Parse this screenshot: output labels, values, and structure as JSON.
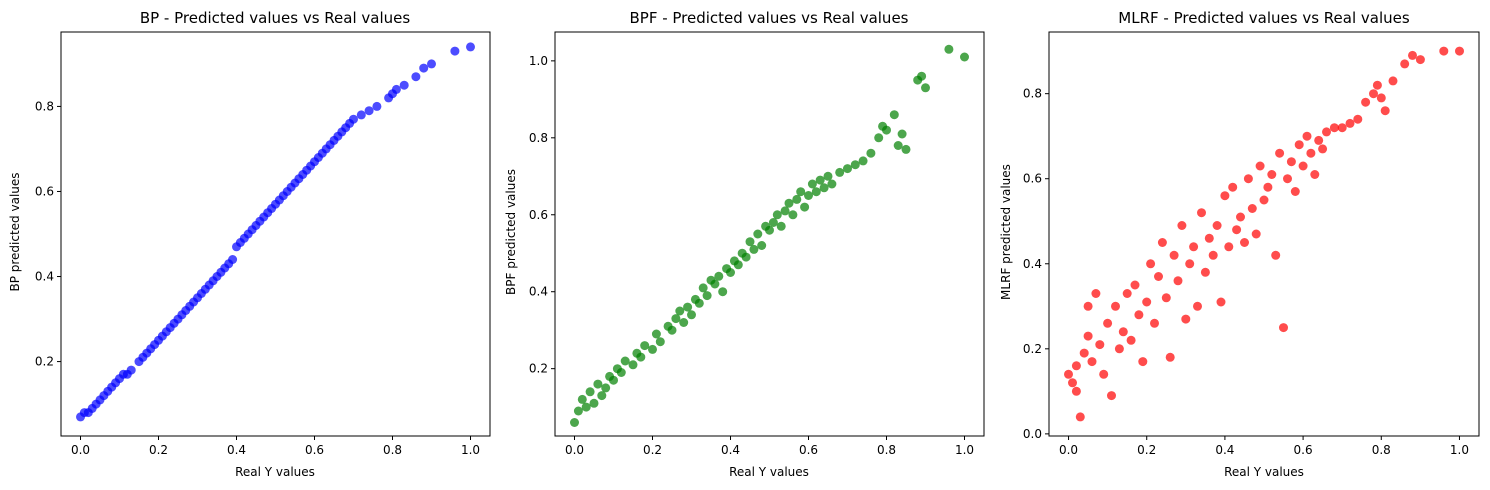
{
  "chart_data": [
    {
      "type": "scatter",
      "title": "BP - Predicted values vs Real values",
      "xlabel": "Real Y values",
      "ylabel": "BP predicted values",
      "color": "#0000ff",
      "xlim": [
        -0.05,
        1.05
      ],
      "ylim": [
        0.025,
        0.975
      ],
      "xticks": [
        0.0,
        0.2,
        0.4,
        0.6,
        0.8,
        1.0
      ],
      "yticks": [
        0.2,
        0.4,
        0.6,
        0.8
      ],
      "points": [
        [
          0.0,
          0.07
        ],
        [
          0.01,
          0.08
        ],
        [
          0.02,
          0.08
        ],
        [
          0.03,
          0.09
        ],
        [
          0.04,
          0.1
        ],
        [
          0.05,
          0.11
        ],
        [
          0.06,
          0.12
        ],
        [
          0.07,
          0.13
        ],
        [
          0.08,
          0.14
        ],
        [
          0.09,
          0.15
        ],
        [
          0.1,
          0.16
        ],
        [
          0.11,
          0.17
        ],
        [
          0.12,
          0.17
        ],
        [
          0.13,
          0.18
        ],
        [
          0.15,
          0.2
        ],
        [
          0.16,
          0.21
        ],
        [
          0.17,
          0.22
        ],
        [
          0.18,
          0.23
        ],
        [
          0.19,
          0.24
        ],
        [
          0.2,
          0.25
        ],
        [
          0.21,
          0.26
        ],
        [
          0.22,
          0.27
        ],
        [
          0.23,
          0.28
        ],
        [
          0.24,
          0.29
        ],
        [
          0.25,
          0.3
        ],
        [
          0.26,
          0.31
        ],
        [
          0.27,
          0.32
        ],
        [
          0.28,
          0.33
        ],
        [
          0.29,
          0.34
        ],
        [
          0.3,
          0.35
        ],
        [
          0.31,
          0.36
        ],
        [
          0.32,
          0.37
        ],
        [
          0.33,
          0.38
        ],
        [
          0.34,
          0.39
        ],
        [
          0.35,
          0.4
        ],
        [
          0.36,
          0.41
        ],
        [
          0.37,
          0.42
        ],
        [
          0.38,
          0.43
        ],
        [
          0.39,
          0.44
        ],
        [
          0.4,
          0.47
        ],
        [
          0.41,
          0.48
        ],
        [
          0.42,
          0.49
        ],
        [
          0.43,
          0.5
        ],
        [
          0.44,
          0.51
        ],
        [
          0.45,
          0.52
        ],
        [
          0.46,
          0.53
        ],
        [
          0.47,
          0.54
        ],
        [
          0.48,
          0.55
        ],
        [
          0.49,
          0.56
        ],
        [
          0.5,
          0.57
        ],
        [
          0.51,
          0.58
        ],
        [
          0.52,
          0.59
        ],
        [
          0.53,
          0.6
        ],
        [
          0.54,
          0.61
        ],
        [
          0.55,
          0.62
        ],
        [
          0.56,
          0.63
        ],
        [
          0.57,
          0.64
        ],
        [
          0.58,
          0.65
        ],
        [
          0.59,
          0.66
        ],
        [
          0.6,
          0.67
        ],
        [
          0.61,
          0.68
        ],
        [
          0.62,
          0.69
        ],
        [
          0.63,
          0.7
        ],
        [
          0.64,
          0.71
        ],
        [
          0.65,
          0.72
        ],
        [
          0.66,
          0.73
        ],
        [
          0.67,
          0.74
        ],
        [
          0.68,
          0.75
        ],
        [
          0.69,
          0.76
        ],
        [
          0.7,
          0.77
        ],
        [
          0.72,
          0.78
        ],
        [
          0.74,
          0.79
        ],
        [
          0.76,
          0.8
        ],
        [
          0.79,
          0.82
        ],
        [
          0.8,
          0.83
        ],
        [
          0.81,
          0.84
        ],
        [
          0.83,
          0.85
        ],
        [
          0.86,
          0.87
        ],
        [
          0.88,
          0.89
        ],
        [
          0.9,
          0.9
        ],
        [
          0.96,
          0.93
        ],
        [
          1.0,
          0.94
        ]
      ]
    },
    {
      "type": "scatter",
      "title": "BPF - Predicted values vs Real values",
      "xlabel": "Real Y values",
      "ylabel": "BPF predicted values",
      "color": "#008000",
      "xlim": [
        -0.05,
        1.05
      ],
      "ylim": [
        0.025,
        1.075
      ],
      "xticks": [
        0.0,
        0.2,
        0.4,
        0.6,
        0.8,
        1.0
      ],
      "yticks": [
        0.2,
        0.4,
        0.6,
        0.8,
        1.0
      ],
      "points": [
        [
          0.0,
          0.06
        ],
        [
          0.01,
          0.09
        ],
        [
          0.02,
          0.12
        ],
        [
          0.03,
          0.1
        ],
        [
          0.04,
          0.14
        ],
        [
          0.05,
          0.11
        ],
        [
          0.06,
          0.16
        ],
        [
          0.07,
          0.13
        ],
        [
          0.08,
          0.15
        ],
        [
          0.09,
          0.18
        ],
        [
          0.1,
          0.17
        ],
        [
          0.11,
          0.2
        ],
        [
          0.12,
          0.19
        ],
        [
          0.13,
          0.22
        ],
        [
          0.15,
          0.21
        ],
        [
          0.16,
          0.24
        ],
        [
          0.17,
          0.23
        ],
        [
          0.18,
          0.26
        ],
        [
          0.2,
          0.25
        ],
        [
          0.21,
          0.29
        ],
        [
          0.22,
          0.27
        ],
        [
          0.24,
          0.31
        ],
        [
          0.25,
          0.3
        ],
        [
          0.26,
          0.33
        ],
        [
          0.27,
          0.35
        ],
        [
          0.28,
          0.32
        ],
        [
          0.29,
          0.36
        ],
        [
          0.3,
          0.34
        ],
        [
          0.31,
          0.38
        ],
        [
          0.32,
          0.37
        ],
        [
          0.33,
          0.41
        ],
        [
          0.34,
          0.39
        ],
        [
          0.35,
          0.43
        ],
        [
          0.36,
          0.42
        ],
        [
          0.37,
          0.44
        ],
        [
          0.38,
          0.4
        ],
        [
          0.39,
          0.46
        ],
        [
          0.4,
          0.45
        ],
        [
          0.41,
          0.48
        ],
        [
          0.42,
          0.47
        ],
        [
          0.43,
          0.5
        ],
        [
          0.44,
          0.49
        ],
        [
          0.45,
          0.53
        ],
        [
          0.46,
          0.51
        ],
        [
          0.47,
          0.55
        ],
        [
          0.48,
          0.52
        ],
        [
          0.49,
          0.57
        ],
        [
          0.5,
          0.56
        ],
        [
          0.51,
          0.58
        ],
        [
          0.52,
          0.6
        ],
        [
          0.53,
          0.57
        ],
        [
          0.54,
          0.61
        ],
        [
          0.55,
          0.63
        ],
        [
          0.56,
          0.6
        ],
        [
          0.57,
          0.64
        ],
        [
          0.58,
          0.66
        ],
        [
          0.59,
          0.62
        ],
        [
          0.6,
          0.65
        ],
        [
          0.61,
          0.68
        ],
        [
          0.62,
          0.66
        ],
        [
          0.63,
          0.69
        ],
        [
          0.64,
          0.67
        ],
        [
          0.65,
          0.7
        ],
        [
          0.66,
          0.68
        ],
        [
          0.68,
          0.71
        ],
        [
          0.7,
          0.72
        ],
        [
          0.72,
          0.73
        ],
        [
          0.74,
          0.74
        ],
        [
          0.76,
          0.76
        ],
        [
          0.78,
          0.8
        ],
        [
          0.79,
          0.83
        ],
        [
          0.8,
          0.82
        ],
        [
          0.82,
          0.86
        ],
        [
          0.83,
          0.78
        ],
        [
          0.84,
          0.81
        ],
        [
          0.85,
          0.77
        ],
        [
          0.88,
          0.95
        ],
        [
          0.89,
          0.96
        ],
        [
          0.9,
          0.93
        ],
        [
          0.96,
          1.03
        ],
        [
          1.0,
          1.01
        ]
      ]
    },
    {
      "type": "scatter",
      "title": "MLRF - Predicted values vs Real values",
      "xlabel": "Real Y values",
      "ylabel": "MLRF predicted values",
      "color": "#ff0000",
      "xlim": [
        -0.05,
        1.05
      ],
      "ylim": [
        -0.005,
        0.945
      ],
      "xticks": [
        0.0,
        0.2,
        0.4,
        0.6,
        0.8,
        1.0
      ],
      "yticks": [
        0.0,
        0.2,
        0.4,
        0.6,
        0.8
      ],
      "points": [
        [
          0.0,
          0.14
        ],
        [
          0.01,
          0.12
        ],
        [
          0.02,
          0.16
        ],
        [
          0.02,
          0.1
        ],
        [
          0.03,
          0.04
        ],
        [
          0.04,
          0.19
        ],
        [
          0.05,
          0.23
        ],
        [
          0.05,
          0.3
        ],
        [
          0.06,
          0.17
        ],
        [
          0.07,
          0.33
        ],
        [
          0.08,
          0.21
        ],
        [
          0.09,
          0.14
        ],
        [
          0.1,
          0.26
        ],
        [
          0.11,
          0.09
        ],
        [
          0.12,
          0.3
        ],
        [
          0.13,
          0.2
        ],
        [
          0.14,
          0.24
        ],
        [
          0.15,
          0.33
        ],
        [
          0.16,
          0.22
        ],
        [
          0.17,
          0.35
        ],
        [
          0.18,
          0.28
        ],
        [
          0.19,
          0.17
        ],
        [
          0.2,
          0.31
        ],
        [
          0.21,
          0.4
        ],
        [
          0.22,
          0.26
        ],
        [
          0.23,
          0.37
        ],
        [
          0.24,
          0.45
        ],
        [
          0.25,
          0.32
        ],
        [
          0.26,
          0.18
        ],
        [
          0.27,
          0.42
        ],
        [
          0.28,
          0.36
        ],
        [
          0.29,
          0.49
        ],
        [
          0.3,
          0.27
        ],
        [
          0.31,
          0.4
        ],
        [
          0.32,
          0.44
        ],
        [
          0.33,
          0.3
        ],
        [
          0.34,
          0.52
        ],
        [
          0.35,
          0.38
        ],
        [
          0.36,
          0.46
        ],
        [
          0.37,
          0.42
        ],
        [
          0.38,
          0.49
        ],
        [
          0.39,
          0.31
        ],
        [
          0.4,
          0.56
        ],
        [
          0.41,
          0.44
        ],
        [
          0.42,
          0.58
        ],
        [
          0.43,
          0.48
        ],
        [
          0.44,
          0.51
        ],
        [
          0.45,
          0.45
        ],
        [
          0.46,
          0.6
        ],
        [
          0.47,
          0.53
        ],
        [
          0.48,
          0.47
        ],
        [
          0.49,
          0.63
        ],
        [
          0.5,
          0.55
        ],
        [
          0.51,
          0.58
        ],
        [
          0.52,
          0.61
        ],
        [
          0.53,
          0.42
        ],
        [
          0.54,
          0.66
        ],
        [
          0.55,
          0.25
        ],
        [
          0.56,
          0.6
        ],
        [
          0.57,
          0.64
        ],
        [
          0.58,
          0.57
        ],
        [
          0.59,
          0.68
        ],
        [
          0.6,
          0.63
        ],
        [
          0.61,
          0.7
        ],
        [
          0.62,
          0.66
        ],
        [
          0.63,
          0.61
        ],
        [
          0.64,
          0.69
        ],
        [
          0.65,
          0.67
        ],
        [
          0.66,
          0.71
        ],
        [
          0.68,
          0.72
        ],
        [
          0.7,
          0.72
        ],
        [
          0.72,
          0.73
        ],
        [
          0.74,
          0.74
        ],
        [
          0.76,
          0.78
        ],
        [
          0.78,
          0.8
        ],
        [
          0.79,
          0.82
        ],
        [
          0.8,
          0.79
        ],
        [
          0.81,
          0.76
        ],
        [
          0.83,
          0.83
        ],
        [
          0.86,
          0.87
        ],
        [
          0.88,
          0.89
        ],
        [
          0.9,
          0.88
        ],
        [
          0.96,
          0.9
        ],
        [
          1.0,
          0.9
        ]
      ]
    }
  ]
}
